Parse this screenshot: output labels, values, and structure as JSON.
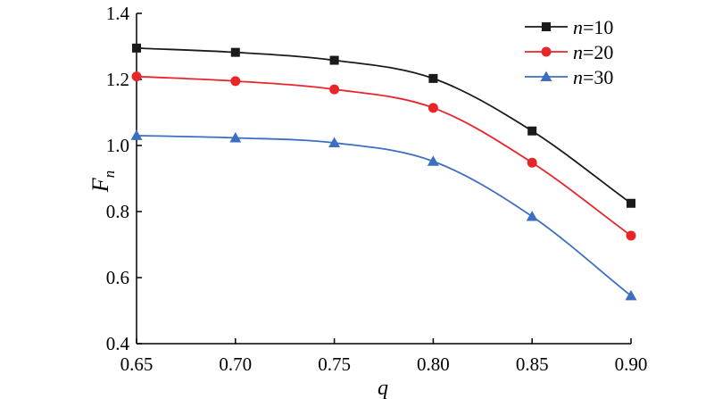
{
  "chart_data": {
    "type": "line",
    "x": [
      0.65,
      0.7,
      0.75,
      0.8,
      0.85,
      0.9
    ],
    "xticks": [
      "0.65",
      "0.70",
      "0.75",
      "0.80",
      "0.85",
      "0.90"
    ],
    "yticks": [
      "0.4",
      "0.6",
      "0.8",
      "1.0",
      "1.2",
      "1.4"
    ],
    "xlim": [
      0.65,
      0.9
    ],
    "ylim": [
      0.4,
      1.4
    ],
    "xlabel": "q",
    "ylabel": "F",
    "ylabel_subscript": "n",
    "grid": false,
    "legend_position": "top-right",
    "series": [
      {
        "name": "n=10",
        "name_var": "n",
        "name_rest": "=10",
        "color": "#1a1a1a",
        "marker": "square",
        "values": [
          1.295,
          1.282,
          1.258,
          1.203,
          1.044,
          0.825
        ]
      },
      {
        "name": "n=20",
        "name_var": "n",
        "name_rest": "=20",
        "color": "#e8262a",
        "marker": "circle",
        "values": [
          1.209,
          1.195,
          1.17,
          1.114,
          0.948,
          0.727
        ]
      },
      {
        "name": "n=30",
        "name_var": "n",
        "name_rest": "=30",
        "color": "#3d6fc0",
        "marker": "triangle",
        "values": [
          1.03,
          1.023,
          1.008,
          0.952,
          0.785,
          0.545
        ]
      }
    ]
  }
}
